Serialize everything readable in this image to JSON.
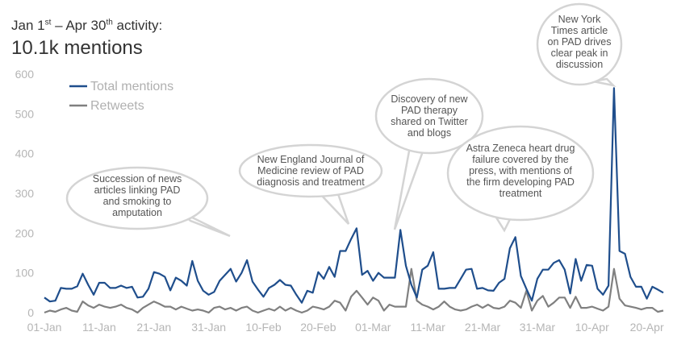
{
  "header": {
    "subtitle_start": "Jan 1",
    "subtitle_sup1": "st",
    "subtitle_mid": " – Apr 30",
    "subtitle_sup2": "th",
    "subtitle_end": " activity:",
    "title": "10.1k mentions"
  },
  "chart_data": {
    "type": "line",
    "x_tick_labels": [
      "01-Jan",
      "11-Jan",
      "21-Jan",
      "31-Jan",
      "10-Feb",
      "20-Feb",
      "01-Mar",
      "11-Mar",
      "21-Mar",
      "31-Mar",
      "10-Apr",
      "20-Apr"
    ],
    "ylim": [
      0,
      600
    ],
    "y_ticks": [
      0,
      100,
      200,
      300,
      400,
      500,
      600
    ],
    "grid": false,
    "legend_position": "top-left",
    "colors": {
      "total": "#1f4e8c",
      "retweets": "#808080",
      "axis_text": "#b5b5b5"
    },
    "series": [
      {
        "name": "Total mentions",
        "values": [
          38,
          28,
          30,
          62,
          60,
          60,
          66,
          98,
          70,
          45,
          75,
          75,
          62,
          62,
          68,
          62,
          65,
          38,
          40,
          60,
          102,
          98,
          90,
          56,
          88,
          80,
          68,
          130,
          80,
          55,
          45,
          52,
          80,
          95,
          110,
          78,
          100,
          132,
          78,
          58,
          40,
          62,
          70,
          82,
          70,
          68,
          45,
          25,
          55,
          50,
          102,
          85,
          115,
          90,
          155,
          155,
          185,
          212,
          95,
          105,
          80,
          100,
          88,
          88,
          88,
          208,
          118,
          70,
          38,
          108,
          118,
          152,
          60,
          60,
          62,
          62,
          85,
          108,
          110,
          60,
          62,
          56,
          55,
          75,
          85,
          162,
          190,
          92,
          60,
          30,
          85,
          108,
          108,
          125,
          132,
          108,
          48,
          135,
          80,
          120,
          118,
          60,
          45,
          68,
          565,
          155,
          148,
          90,
          65,
          65,
          35,
          65,
          58,
          50
        ],
        "values_ref": "dates 01-Jan to 20-Apr + 4 days, daily"
      },
      {
        "name": "Retweets",
        "values": [
          0,
          5,
          2,
          8,
          12,
          5,
          2,
          28,
          18,
          12,
          20,
          15,
          12,
          15,
          20,
          12,
          8,
          0,
          12,
          20,
          28,
          22,
          15,
          15,
          8,
          15,
          10,
          5,
          8,
          5,
          0,
          12,
          15,
          8,
          12,
          5,
          12,
          15,
          5,
          0,
          5,
          10,
          5,
          15,
          5,
          12,
          5,
          0,
          5,
          15,
          12,
          8,
          15,
          30,
          25,
          5,
          40,
          55,
          38,
          20,
          38,
          30,
          5,
          20,
          15,
          15,
          15,
          110,
          30,
          20,
          15,
          8,
          15,
          28,
          15,
          8,
          5,
          8,
          15,
          20,
          12,
          20,
          12,
          10,
          15,
          30,
          25,
          12,
          55,
          5,
          30,
          42,
          15,
          25,
          38,
          38,
          12,
          40,
          12,
          12,
          15,
          10,
          5,
          15,
          110,
          35,
          18,
          15,
          12,
          8,
          12,
          12,
          2,
          5
        ]
      }
    ],
    "annotations": [
      {
        "lines": [
          "Succession of news",
          "articles linking PAD",
          "and smoking to",
          "amputation"
        ]
      },
      {
        "lines": [
          "New England Journal of",
          "Medicine review of PAD",
          "diagnosis and treatment"
        ]
      },
      {
        "lines": [
          "Discovery of new",
          "PAD therapy",
          "shared on Twitter",
          "and blogs"
        ]
      },
      {
        "lines": [
          "Astra Zeneca heart drug",
          "failure covered by the",
          "press, with mentions of",
          "the firm developing PAD",
          "treatment"
        ]
      },
      {
        "lines": [
          "New York",
          "Times article",
          "on PAD drives",
          "clear peak in",
          "discussion"
        ]
      }
    ]
  }
}
